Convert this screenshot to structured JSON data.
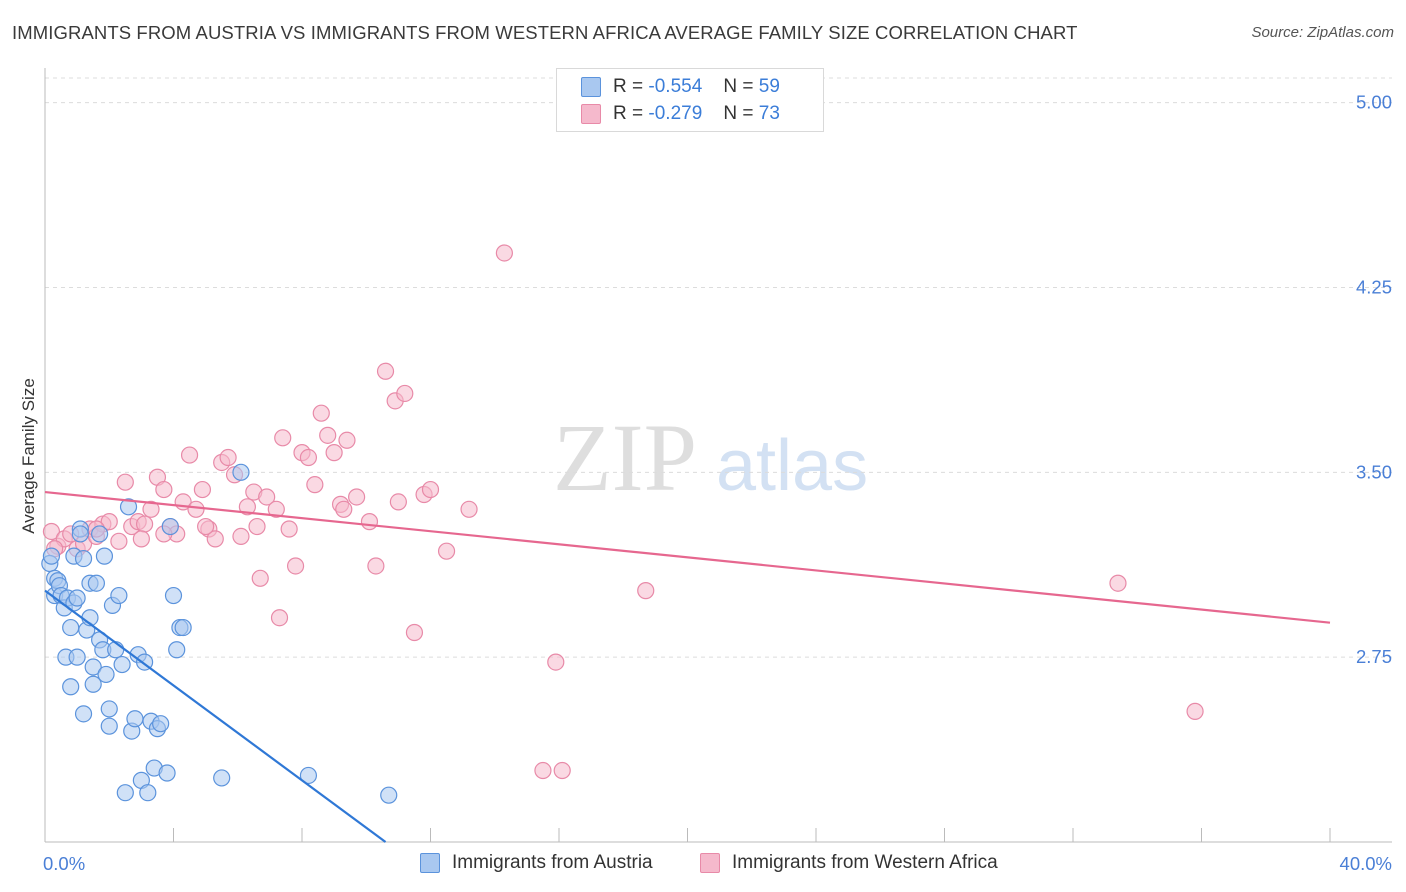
{
  "header": {
    "title": "IMMIGRANTS FROM AUSTRIA VS IMMIGRANTS FROM WESTERN AFRICA AVERAGE FAMILY SIZE CORRELATION CHART",
    "source": "Source: ZipAtlas.com"
  },
  "legend": {
    "r_label": "R =",
    "n_label": "N =",
    "austria": {
      "r": "-0.554",
      "n": "59"
    },
    "western_africa": {
      "r": "-0.279",
      "n": "73"
    }
  },
  "watermark": {
    "zip": "ZIP",
    "atlas": "atlas"
  },
  "colors": {
    "austria_fill": "#a9c8f0",
    "austria_stroke": "#5b93dc",
    "austria_line": "#2f78d6",
    "wa_fill": "#f5b9cc",
    "wa_stroke": "#e88aa8",
    "wa_line": "#e6678f",
    "tick_text": "#4a7fd6",
    "grid": "#dcdcdc"
  },
  "chart_data": {
    "type": "scatter",
    "title": "IMMIGRANTS FROM AUSTRIA VS IMMIGRANTS FROM WESTERN AFRICA AVERAGE FAMILY SIZE CORRELATION CHART",
    "xlabel": "",
    "ylabel": "Average Family Size",
    "xlim": [
      0,
      40
    ],
    "ylim": [
      2.0,
      5.1
    ],
    "x_tick_labels": [
      "0.0%",
      "40.0%"
    ],
    "y_ticks": [
      2.75,
      3.5,
      4.25,
      5.0
    ],
    "y_tick_labels": [
      "2.75",
      "3.50",
      "4.25",
      "5.00"
    ],
    "grid": true,
    "series": [
      {
        "name": "Immigrants from Austria",
        "x": [
          0.15,
          0.2,
          0.3,
          0.3,
          0.4,
          0.45,
          0.5,
          0.6,
          0.65,
          0.7,
          0.8,
          0.8,
          0.9,
          0.9,
          1.0,
          1.0,
          1.1,
          1.1,
          1.2,
          1.2,
          1.3,
          1.4,
          1.4,
          1.5,
          1.5,
          1.6,
          1.7,
          1.7,
          1.8,
          1.9,
          2.0,
          2.0,
          2.1,
          2.2,
          2.3,
          2.4,
          2.5,
          2.6,
          2.7,
          2.8,
          2.9,
          3.0,
          3.1,
          3.2,
          3.3,
          3.4,
          3.5,
          3.6,
          3.8,
          3.9,
          4.0,
          4.1,
          4.2,
          4.3,
          5.5,
          6.1,
          8.2,
          10.7,
          1.85
        ],
        "y": [
          3.13,
          3.16,
          3.07,
          3.0,
          3.06,
          3.04,
          3.0,
          2.95,
          2.75,
          2.99,
          2.87,
          2.63,
          3.16,
          2.97,
          2.99,
          2.75,
          3.27,
          3.25,
          2.52,
          3.15,
          2.86,
          3.05,
          2.91,
          2.71,
          2.64,
          3.05,
          3.25,
          2.82,
          2.78,
          2.68,
          2.47,
          2.54,
          2.96,
          2.78,
          3.0,
          2.72,
          2.2,
          3.36,
          2.45,
          2.5,
          2.76,
          2.25,
          2.73,
          2.2,
          2.49,
          2.3,
          2.46,
          2.48,
          2.28,
          3.28,
          3.0,
          2.78,
          2.87,
          2.87,
          2.26,
          3.5,
          2.27,
          2.19,
          3.16
        ]
      },
      {
        "name": "Immigrants from Western Africa",
        "x": [
          0.2,
          0.4,
          0.6,
          0.8,
          1.0,
          1.2,
          1.4,
          1.6,
          1.8,
          2.0,
          2.3,
          2.5,
          2.7,
          2.9,
          3.1,
          3.3,
          3.5,
          3.7,
          3.9,
          4.1,
          4.3,
          4.5,
          4.7,
          4.9,
          5.1,
          5.3,
          5.5,
          5.7,
          5.9,
          6.1,
          6.3,
          6.5,
          6.7,
          6.9,
          7.2,
          7.4,
          7.6,
          7.8,
          8.0,
          8.2,
          8.4,
          8.6,
          8.8,
          9.0,
          9.2,
          9.4,
          9.7,
          10.1,
          10.3,
          10.6,
          10.9,
          11.2,
          11.5,
          11.8,
          12.0,
          12.5,
          13.2,
          14.3,
          16.1,
          15.5,
          15.9,
          18.7,
          33.4,
          35.8,
          0.3,
          1.6,
          3.0,
          6.6,
          7.3,
          9.3,
          11.0,
          3.7,
          5.0
        ],
        "y": [
          3.26,
          3.2,
          3.23,
          3.25,
          3.19,
          3.21,
          3.27,
          3.24,
          3.29,
          3.3,
          3.22,
          3.46,
          3.28,
          3.3,
          3.29,
          3.35,
          3.48,
          3.43,
          3.28,
          3.25,
          3.38,
          3.57,
          3.35,
          3.43,
          3.27,
          3.23,
          3.54,
          3.56,
          3.49,
          3.24,
          3.36,
          3.42,
          3.07,
          3.4,
          3.35,
          3.64,
          3.27,
          3.12,
          3.58,
          3.56,
          3.45,
          3.74,
          3.65,
          3.58,
          3.37,
          3.63,
          3.4,
          3.3,
          3.12,
          3.91,
          3.79,
          3.82,
          2.85,
          3.41,
          3.43,
          3.18,
          3.35,
          4.39,
          2.29,
          2.29,
          2.73,
          3.02,
          3.05,
          2.53,
          3.19,
          3.27,
          3.23,
          3.28,
          2.91,
          3.35,
          3.38,
          3.25,
          3.28
        ]
      }
    ],
    "trend_lines": [
      {
        "name": "Immigrants from Austria",
        "x": [
          0.0,
          10.6
        ],
        "y": [
          3.02,
          2.0
        ]
      },
      {
        "name": "Immigrants from Western Africa",
        "x": [
          0.0,
          40.0
        ],
        "y": [
          3.42,
          2.89
        ]
      }
    ]
  },
  "bottom_legend": {
    "austria_label": "Immigrants from Austria",
    "wa_label": "Immigrants from Western Africa"
  }
}
